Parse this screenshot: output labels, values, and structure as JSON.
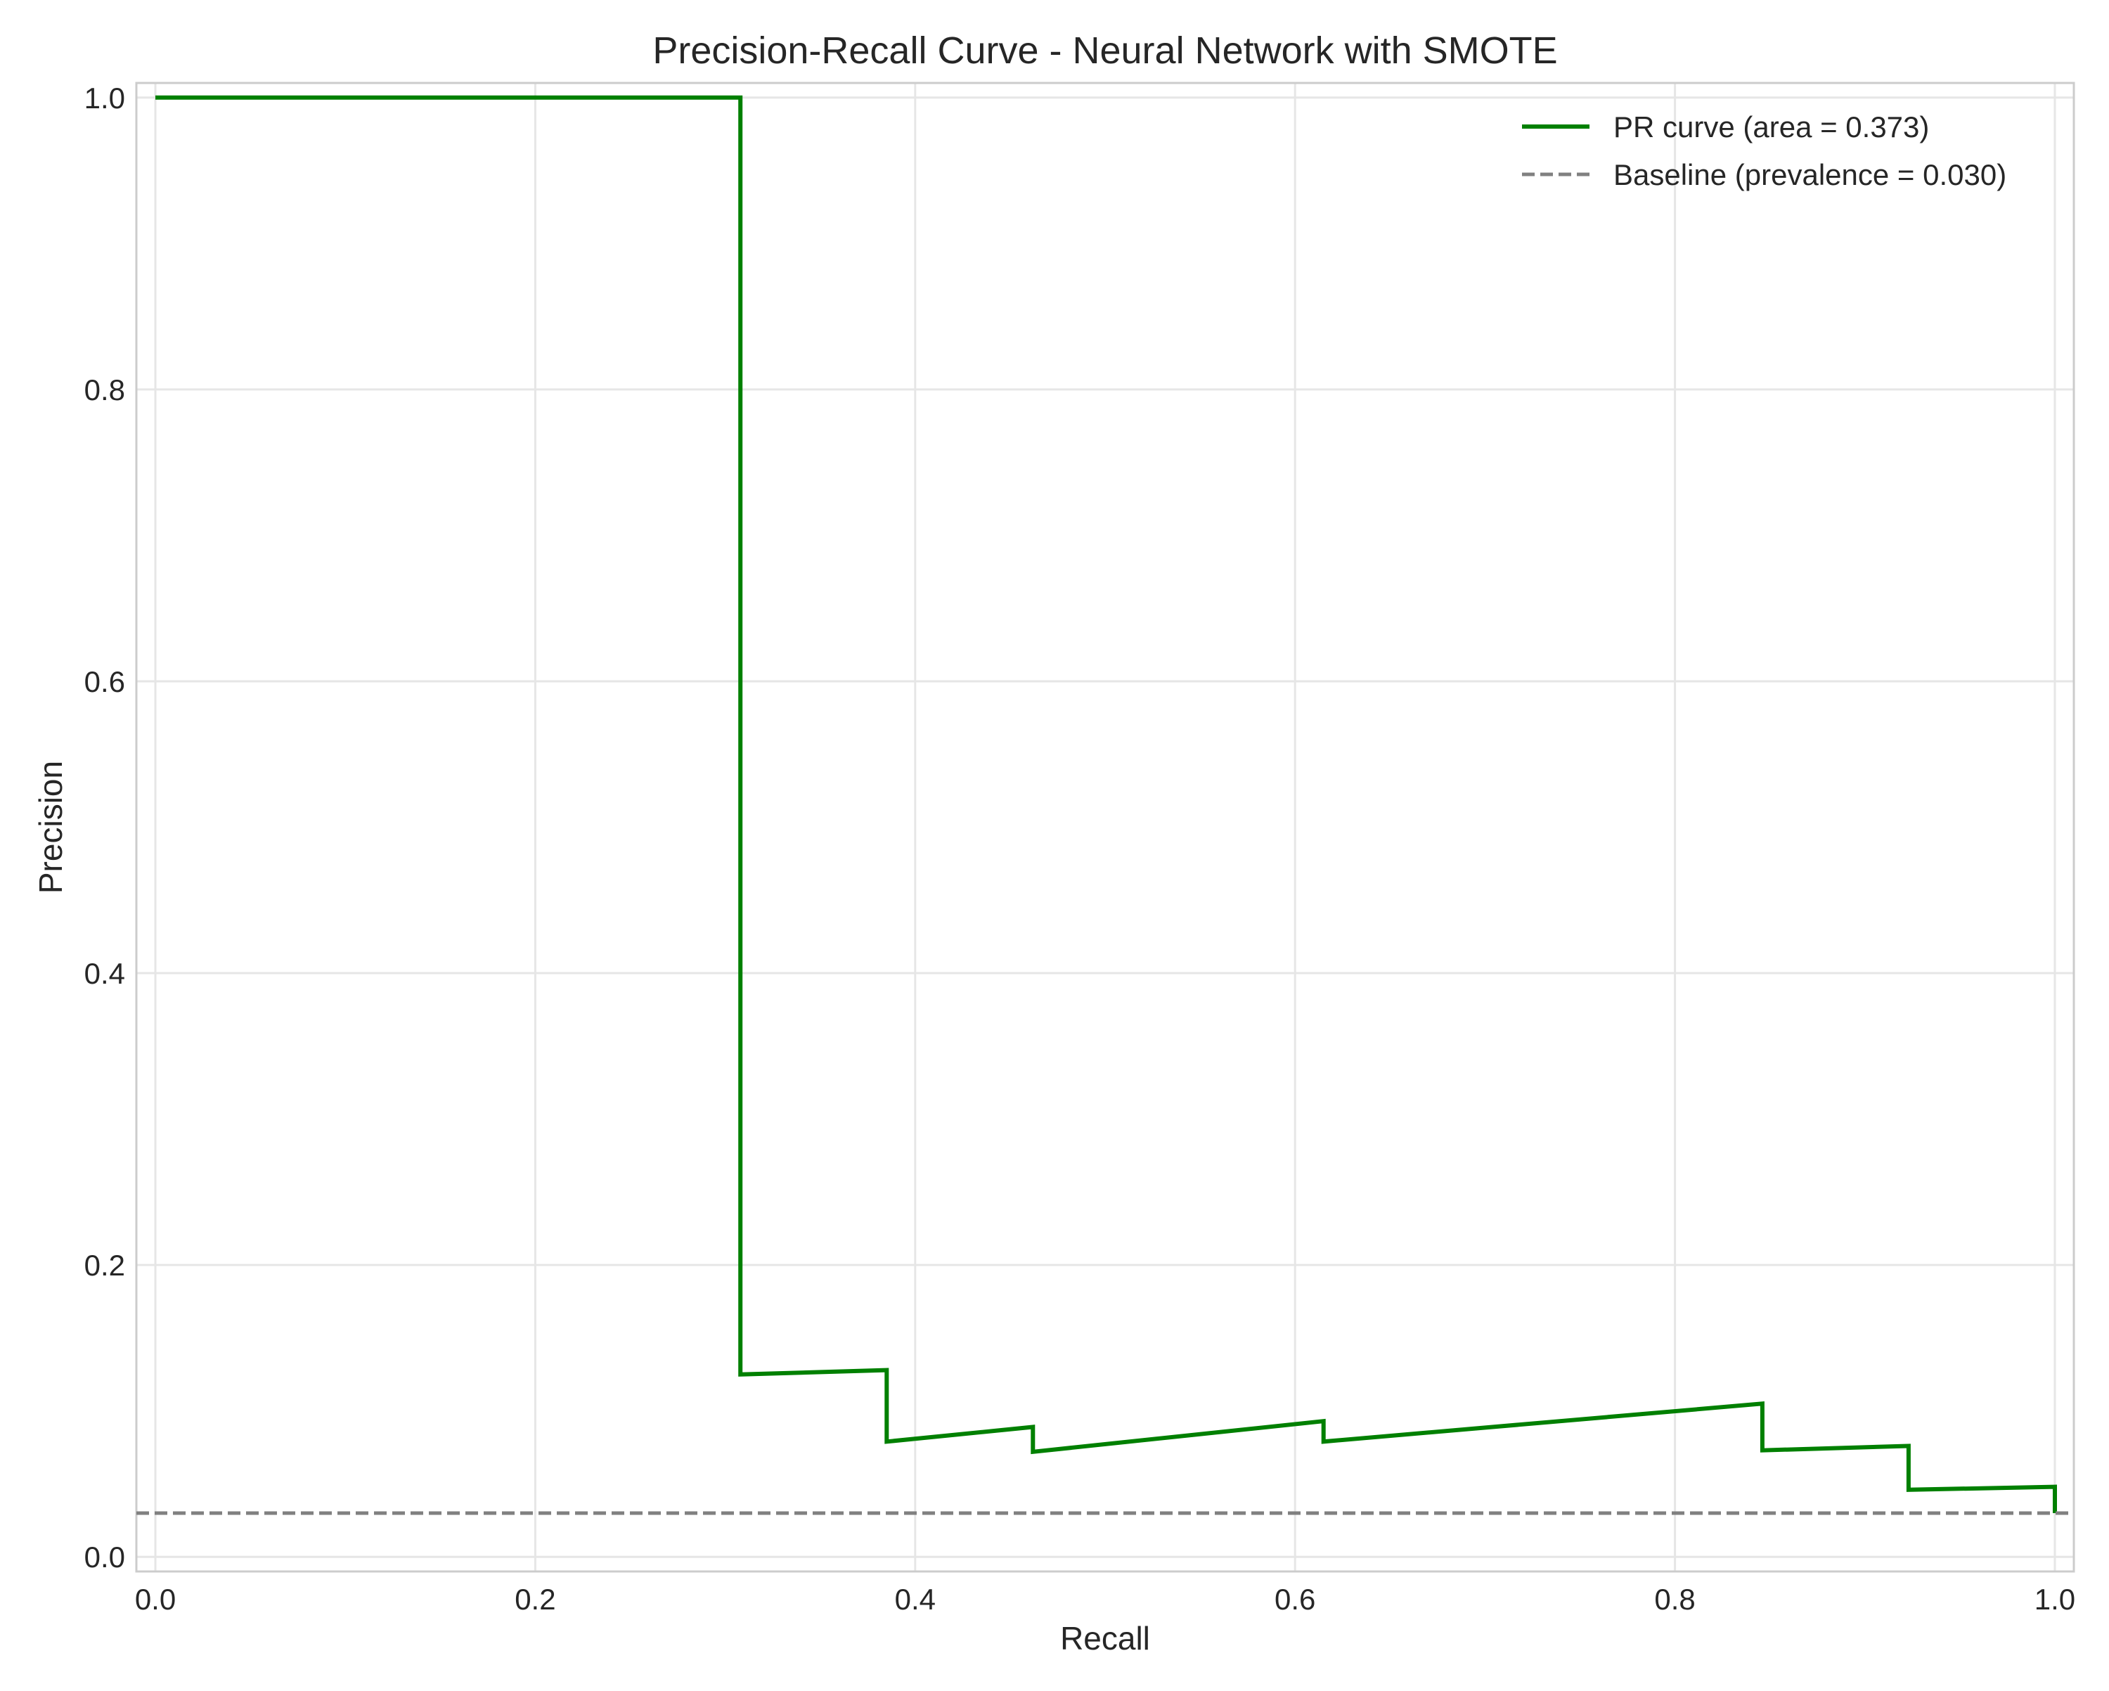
{
  "chart_data": {
    "type": "line",
    "title": "Precision-Recall Curve - Neural Network with SMOTE",
    "xlabel": "Recall",
    "ylabel": "Precision",
    "xlim": [
      -0.01,
      1.01
    ],
    "ylim": [
      -0.01,
      1.01
    ],
    "x_ticks": [
      0.0,
      0.2,
      0.4,
      0.6,
      0.8,
      1.0
    ],
    "y_ticks": [
      0.0,
      0.2,
      0.4,
      0.6,
      0.8,
      1.0
    ],
    "x_tick_labels": [
      "0.0",
      "0.2",
      "0.4",
      "0.6",
      "0.8",
      "1.0"
    ],
    "y_tick_labels": [
      "0.0",
      "0.2",
      "0.4",
      "0.6",
      "0.8",
      "1.0"
    ],
    "grid": true,
    "legend_position": "top-right",
    "series": [
      {
        "name": "PR curve (area = 0.373)",
        "color": "#008000",
        "line_style": "solid",
        "points": [
          [
            0.0,
            1.0
          ],
          [
            0.308,
            1.0
          ],
          [
            0.308,
            0.125
          ],
          [
            0.385,
            0.128
          ],
          [
            0.385,
            0.079
          ],
          [
            0.462,
            0.089
          ],
          [
            0.462,
            0.072
          ],
          [
            0.615,
            0.093
          ],
          [
            0.615,
            0.079
          ],
          [
            0.846,
            0.105
          ],
          [
            0.846,
            0.073
          ],
          [
            0.923,
            0.076
          ],
          [
            0.923,
            0.046
          ],
          [
            1.0,
            0.048
          ],
          [
            1.0,
            0.03
          ]
        ]
      },
      {
        "name": "Baseline (prevalence = 0.030)",
        "color": "#808080",
        "line_style": "dashed",
        "points": [
          [
            -0.01,
            0.03
          ],
          [
            1.01,
            0.03
          ]
        ]
      }
    ]
  }
}
